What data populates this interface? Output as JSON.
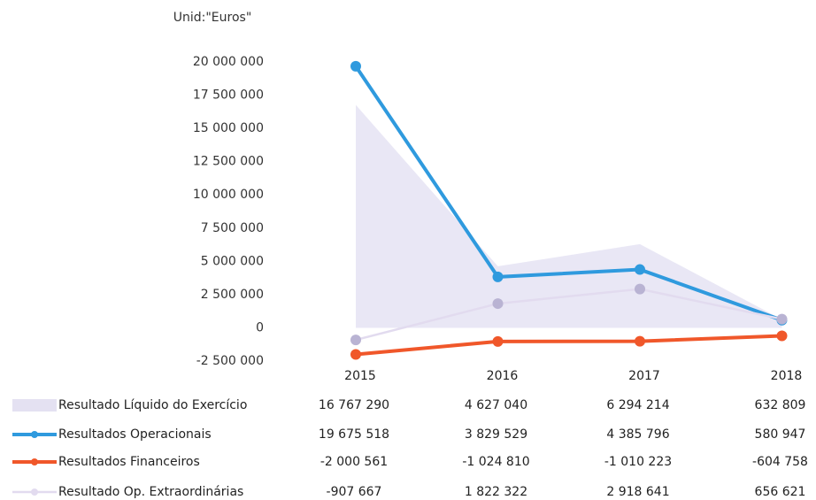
{
  "chart_data": {
    "type": "line",
    "axis_label": "Unid:\"Euros\"",
    "categories": [
      "2015",
      "2016",
      "2017",
      "2018"
    ],
    "ylim": [
      -2500000,
      20000000
    ],
    "yticks": [
      {
        "value": -2500000,
        "label": "-2 500 000"
      },
      0,
      {
        "value": 2500000,
        "label": "2 500 000"
      },
      {
        "value": 5000000,
        "label": "5 000 000"
      },
      {
        "value": 7500000,
        "label": "7 500 000"
      },
      {
        "value": 10000000,
        "label": "10 000 000"
      },
      {
        "value": 12500000,
        "label": "12 500 000"
      },
      {
        "value": 15000000,
        "label": "15 000 000"
      },
      {
        "value": 17500000,
        "label": "17 500 000"
      },
      {
        "value": 20000000,
        "label": "20 000 000"
      }
    ],
    "grid": false,
    "series": [
      {
        "name": "Resultado Líquido do Exercício",
        "kind": "area",
        "color": "#e4e1f2",
        "values": [
          16767290,
          4627040,
          6294214,
          632809
        ],
        "value_labels": [
          "16 767 290",
          "4 627 040",
          "6 294 214",
          "632 809"
        ]
      },
      {
        "name": "Resultados Operacionais",
        "kind": "line",
        "color": "#2f9ade",
        "values": [
          19675518,
          3829529,
          4385796,
          580947
        ],
        "value_labels": [
          "19 675 518",
          "3 829 529",
          "4 385 796",
          "580 947"
        ]
      },
      {
        "name": "Resultados Financeiros",
        "kind": "line",
        "color": "#f0572a",
        "values": [
          -2000561,
          -1024810,
          -1010223,
          -604758
        ],
        "value_labels": [
          "-2 000 561",
          "-1 024 810",
          "-1 010 223",
          "-604 758"
        ]
      },
      {
        "name": "Resultado Op. Extraordinárias",
        "kind": "line",
        "color": "#e2dbef",
        "values": [
          -907667,
          1822322,
          2918641,
          656621
        ],
        "value_labels": [
          "-907 667",
          "1 822 322",
          "2 918 641",
          "656 621"
        ]
      }
    ]
  }
}
